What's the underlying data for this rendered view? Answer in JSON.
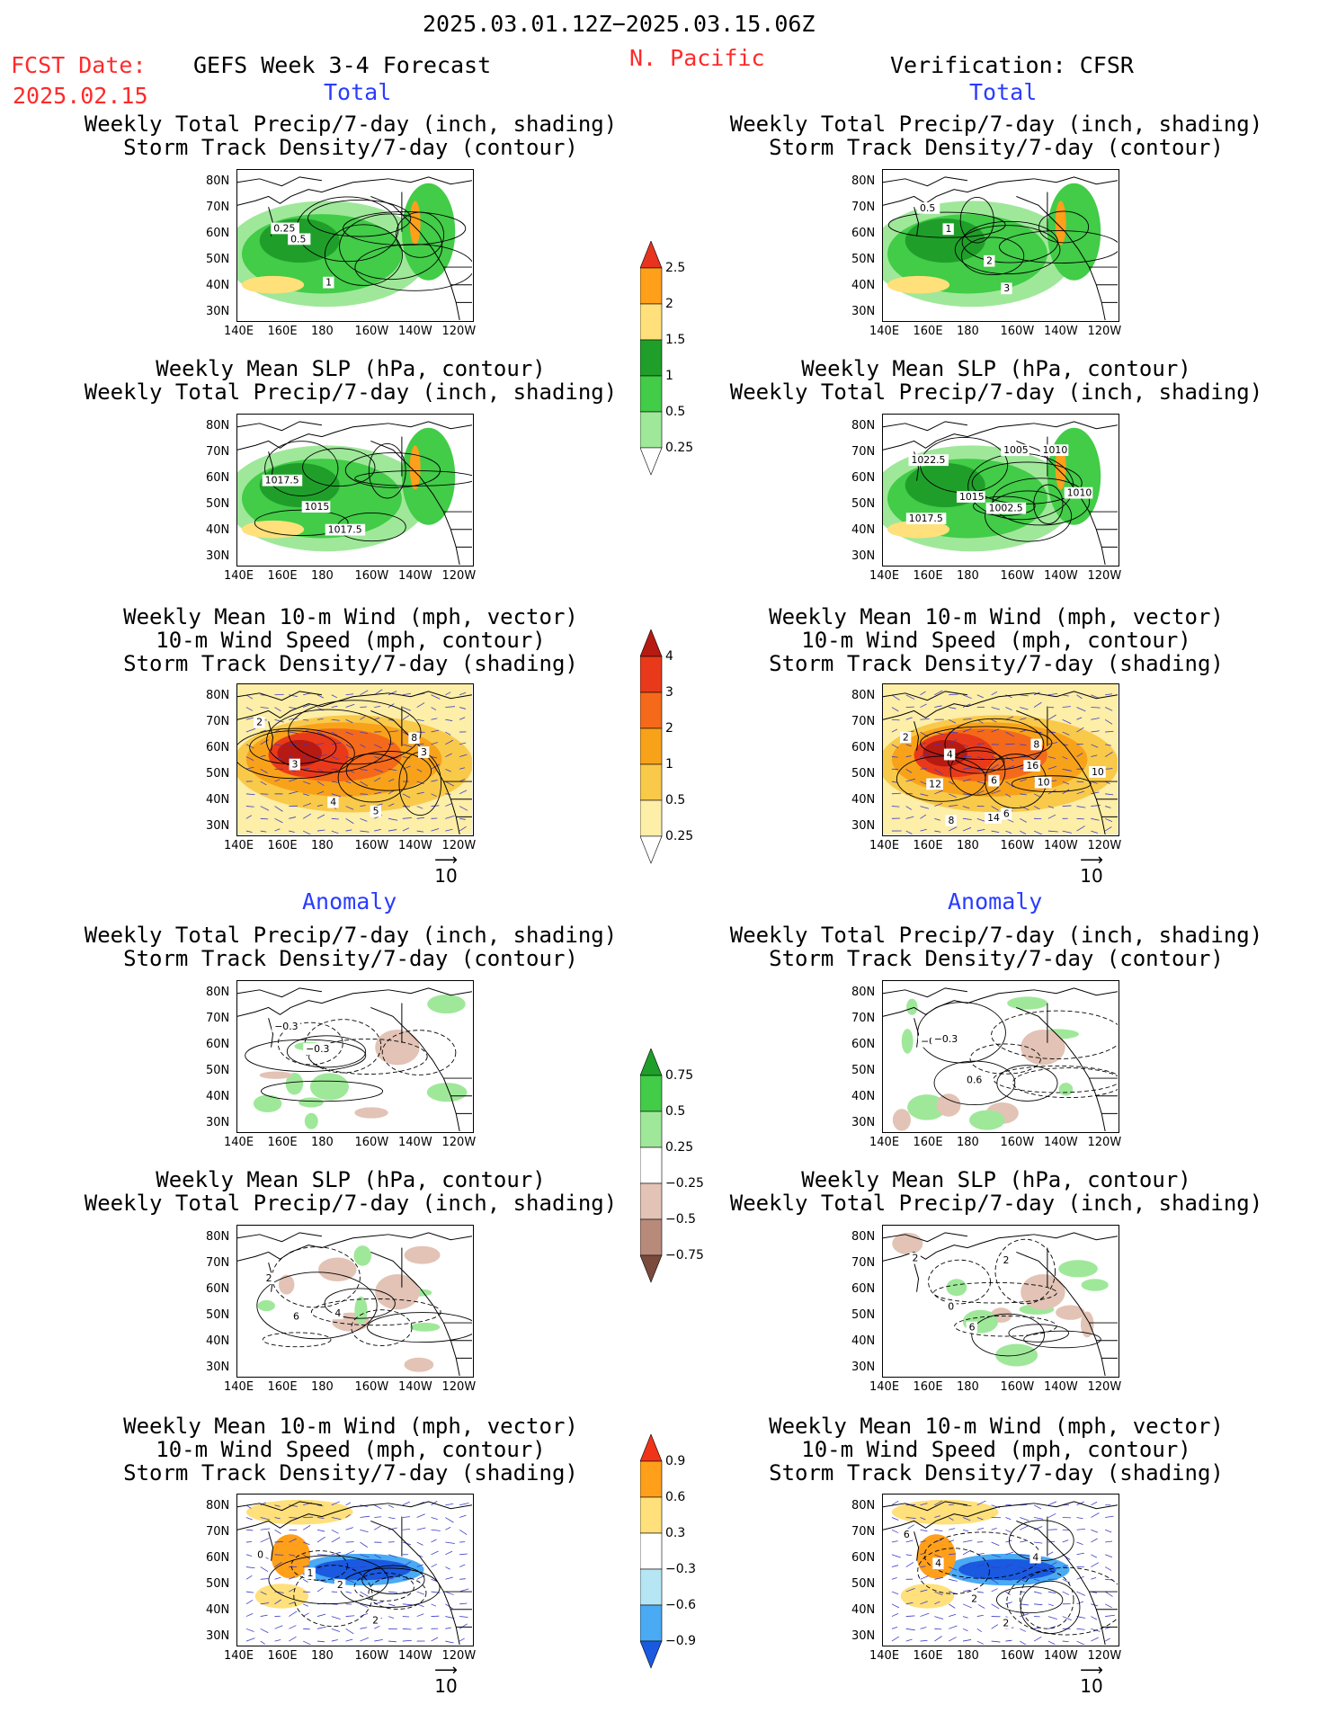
{
  "header": {
    "date_range": "2025.03.01.12Z−2025.03.15.06Z",
    "fcst_label": "FCST Date:",
    "fcst_date": "2025.02.15",
    "forecast_title": "GEFS Week 3-4 Forecast",
    "region": "N. Pacific",
    "verification": "Verification: CFSR"
  },
  "sections": {
    "total": "Total",
    "anomaly": "Anomaly"
  },
  "panel_titles": {
    "precip_storm": [
      "Weekly Total Precip/7-day (inch, shading)",
      "Storm Track Density/7-day (contour)"
    ],
    "slp_precip": [
      "Weekly Mean SLP (hPa, contour)",
      "Weekly Total Precip/7-day (inch, shading)"
    ],
    "wind": [
      "Weekly Mean 10-m Wind (mph, vector)",
      "10-m Wind Speed (mph, contour)",
      "Storm Track Density/7-day (shading)"
    ]
  },
  "axes": {
    "lat_ticks": [
      "80N",
      "70N",
      "60N",
      "50N",
      "40N",
      "30N"
    ],
    "lon_ticks": [
      "140E",
      "160E",
      "180",
      "160W",
      "140W",
      "120W"
    ]
  },
  "vector_ref": "10",
  "colorbars": {
    "precip_total": {
      "labels": [
        "2.5",
        "2",
        "1.5",
        "1",
        "0.5",
        "0.25"
      ],
      "colors": [
        "#e8331f",
        "#ff9f1a",
        "#ffe07a",
        "#1f9f2a",
        "#42cc48",
        "#9fe89a",
        "#ffffff"
      ]
    },
    "storm_total": {
      "labels": [
        "4",
        "3",
        "2",
        "1",
        "0.5",
        "0.25"
      ],
      "colors": [
        "#b71a12",
        "#e83a1a",
        "#f46a1a",
        "#f8a21a",
        "#f9c94a",
        "#fdeea8",
        "#ffffff"
      ]
    },
    "precip_anom": {
      "labels": [
        "0.75",
        "0.5",
        "0.25",
        "−0.25",
        "−0.5",
        "−0.75"
      ],
      "colors": [
        "#1f9f2a",
        "#42cc48",
        "#9fe89a",
        "#ffffff",
        "#e2c3b5",
        "#b78a7a",
        "#7a4a3c"
      ]
    },
    "storm_anom": {
      "labels": [
        "0.9",
        "0.6",
        "0.3",
        "−0.3",
        "−0.6",
        "−0.9"
      ],
      "colors": [
        "#f0341a",
        "#ff9f1a",
        "#ffe07a",
        "#ffffff",
        "#b6e6f4",
        "#4aaaf4",
        "#1a5ae0"
      ]
    }
  },
  "contour_labels": {
    "p1": [
      "0.25",
      "0.5",
      "1"
    ],
    "p2": [
      "0.5",
      "1",
      "2",
      "3"
    ],
    "p3": [
      "1017.5",
      "1015",
      "1017.5"
    ],
    "p4": [
      "1022.5",
      "1015",
      "1002.5",
      "1005",
      "1010",
      "1010",
      "1017.5"
    ],
    "p5": [
      "2",
      "3",
      "4",
      "5",
      "8",
      "3"
    ],
    "p6": [
      "2",
      "4",
      "6",
      "6",
      "8",
      "10",
      "12",
      "8",
      "14",
      "16",
      "10"
    ],
    "p7": [
      "−0.3",
      "−0.3"
    ],
    "p8": [
      "−0.3",
      "−0.3",
      "0.6"
    ],
    "p9": [
      "2",
      "6",
      "4"
    ],
    "p10": [
      "2",
      "0",
      "6",
      "2"
    ],
    "p11": [
      "0",
      "1",
      "2",
      "2"
    ],
    "p12": [
      "6",
      "4",
      "2",
      "2",
      "4"
    ]
  }
}
